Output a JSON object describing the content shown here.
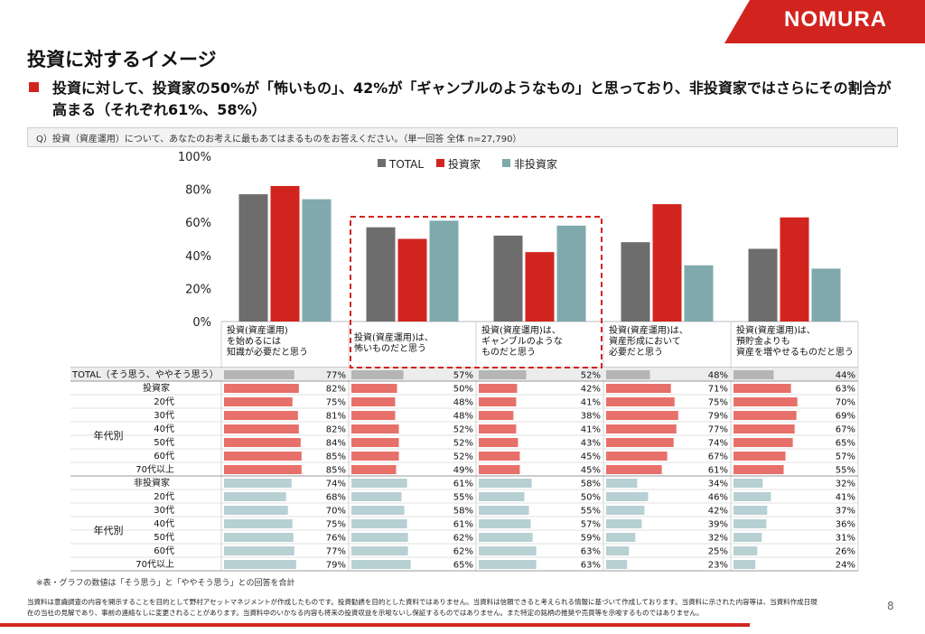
{
  "header": {
    "logo": "NOMURA",
    "brand_color": "#d2241f"
  },
  "title": "投資に対するイメージ",
  "subtitle": [
    "投資に対して、投資家の50%が「怖いもの」、42%が「ギャンブルのようなもの」と思っており、非投資家ではさらにその割合が",
    "高まる（それぞれ61%、58%）"
  ],
  "question": "Q）投資（資産運用）について、あなたのお考えに最もあてはまるものをお答えください。（単一回答 全体 n=27,790）",
  "chart_data": {
    "type": "bar",
    "categories": [
      [
        "投資(資産運用)",
        "を始めるには",
        "知識が必要だと思う"
      ],
      [
        "投資(資産運用)は、",
        "怖いものだと思う"
      ],
      [
        "投資(資産運用)は、",
        "ギャンブルのような",
        "ものだと思う"
      ],
      [
        "投資(資産運用)は、",
        "資産形成において",
        "必要だと思う"
      ],
      [
        "投資(資産運用)は、",
        "預貯金よりも",
        "資産を増やせるものだと思う"
      ]
    ],
    "series": [
      {
        "name": "TOTAL",
        "color": "#6d6d6d",
        "values": [
          77,
          57,
          52,
          48,
          44
        ]
      },
      {
        "name": "投資家",
        "color": "#d2241f",
        "values": [
          82,
          50,
          42,
          71,
          63
        ]
      },
      {
        "name": "非投資家",
        "color": "#7fa9ad",
        "values": [
          74,
          61,
          58,
          34,
          32
        ]
      }
    ],
    "yticks": [
      "0%",
      "20%",
      "40%",
      "60%",
      "80%",
      "100%"
    ],
    "ylim": [
      0,
      100
    ],
    "highlight_categories": [
      1,
      2
    ],
    "legend_position": "top",
    "table": {
      "group_label": "年代別",
      "rows": [
        {
          "label": "TOTAL（そう思う、ややそう思う）",
          "kind": "total",
          "values": [
            77,
            57,
            52,
            48,
            44
          ]
        },
        {
          "label": "投資家",
          "kind": "inv",
          "values": [
            82,
            50,
            42,
            71,
            63
          ]
        },
        {
          "label": "20代",
          "kind": "inv",
          "values": [
            75,
            48,
            41,
            75,
            70
          ]
        },
        {
          "label": "30代",
          "kind": "inv",
          "values": [
            81,
            48,
            38,
            79,
            69
          ]
        },
        {
          "label": "40代",
          "kind": "inv",
          "values": [
            82,
            52,
            41,
            77,
            67
          ]
        },
        {
          "label": "50代",
          "kind": "inv",
          "values": [
            84,
            52,
            43,
            74,
            65
          ]
        },
        {
          "label": "60代",
          "kind": "inv",
          "values": [
            85,
            52,
            45,
            67,
            57
          ]
        },
        {
          "label": "70代以上",
          "kind": "inv",
          "values": [
            85,
            49,
            45,
            61,
            55
          ]
        },
        {
          "label": "非投資家",
          "kind": "non",
          "values": [
            74,
            61,
            58,
            34,
            32
          ]
        },
        {
          "label": "20代",
          "kind": "non",
          "values": [
            68,
            55,
            50,
            46,
            41
          ]
        },
        {
          "label": "30代",
          "kind": "non",
          "values": [
            70,
            58,
            55,
            42,
            37
          ]
        },
        {
          "label": "40代",
          "kind": "non",
          "values": [
            75,
            61,
            57,
            39,
            36
          ]
        },
        {
          "label": "50代",
          "kind": "non",
          "values": [
            76,
            62,
            59,
            32,
            31
          ]
        },
        {
          "label": "60代",
          "kind": "non",
          "values": [
            77,
            62,
            63,
            25,
            26
          ]
        },
        {
          "label": "70代以上",
          "kind": "non",
          "values": [
            79,
            65,
            63,
            23,
            24
          ]
        }
      ],
      "bar_colors": {
        "total": "#b5b5b5",
        "inv": "#e8706a",
        "non": "#b7d0d3"
      }
    }
  },
  "note": "※表・グラフの数値は「そう思う」と「ややそう思う」との回答を合計",
  "disclaimer": [
    "当資料は意識調査の内容を開示することを目的として野村アセットマネジメントが作成したものです。投資勧誘を目的とした資料ではありません。当資料は信頼できると考えられる情報に基づいて作成しております。当資料に示された内容等は、当資料作成日現",
    "在の当社の見解であり、事前の連絡なしに変更されることがあります。当資料中のいかなる内容も将来の投資収益を示唆ないし保証するものではありません。また特定の銘柄の推奨や売買等を示唆するものではありません。"
  ],
  "page_number": "8"
}
